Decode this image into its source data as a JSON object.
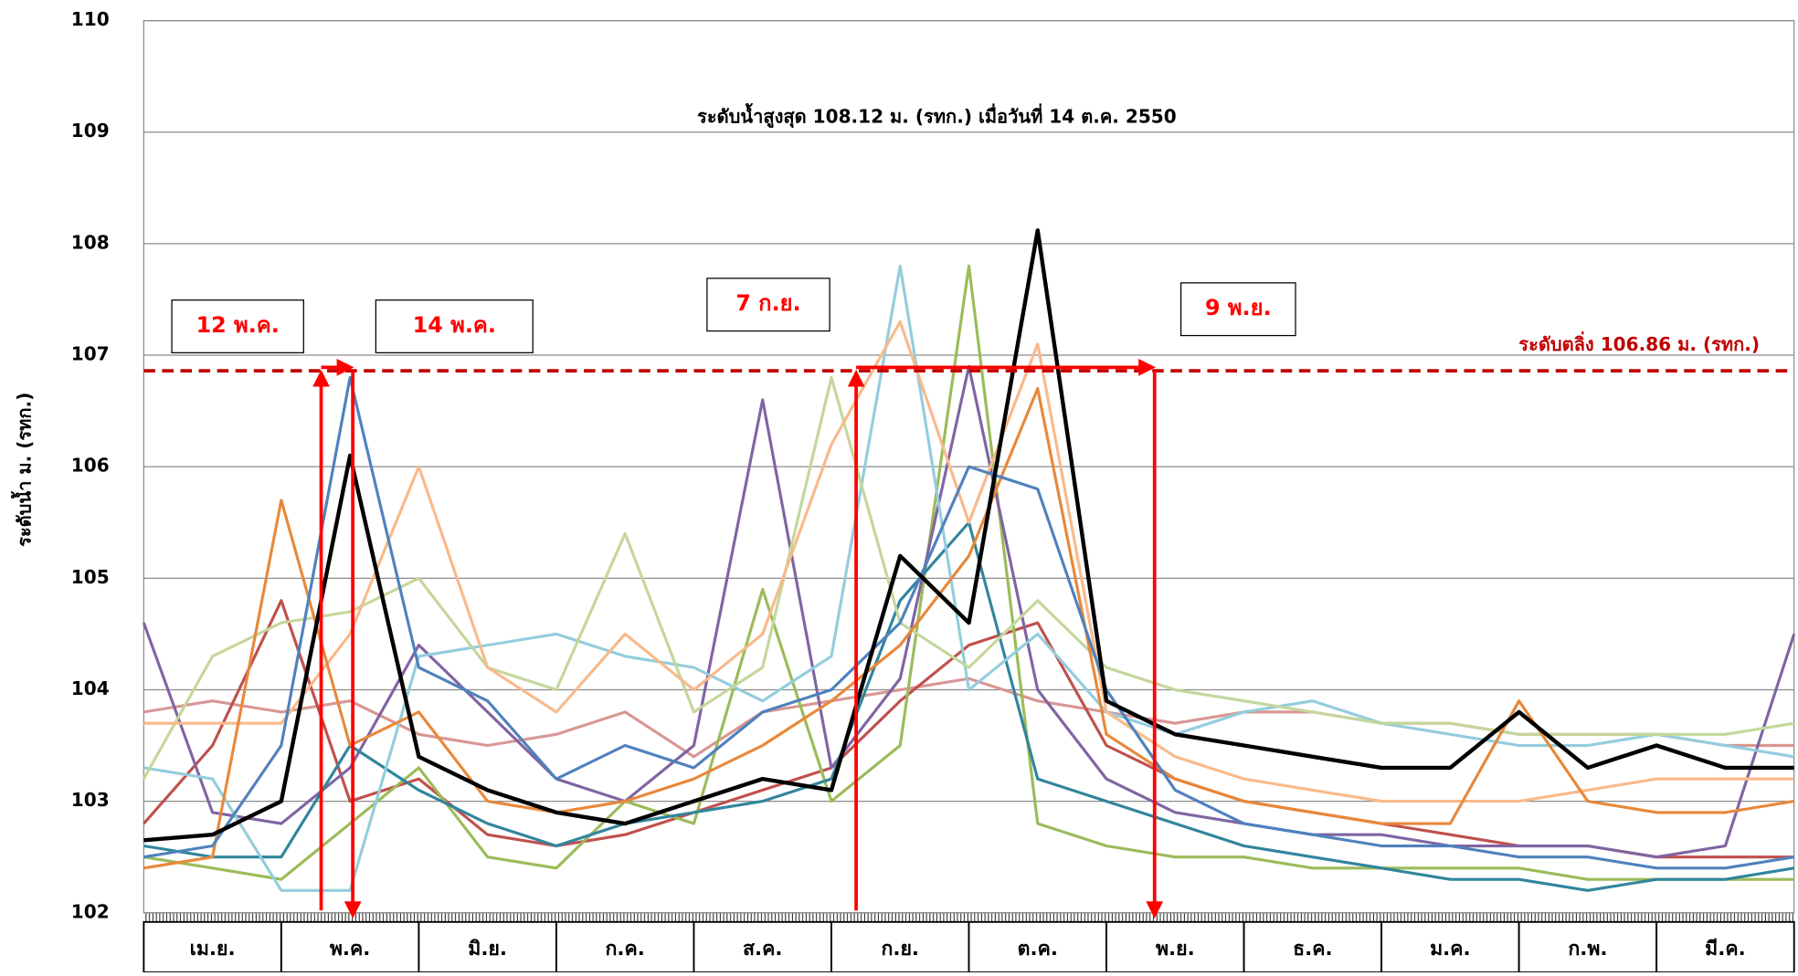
{
  "chart_data": {
    "type": "line",
    "ylabel": "ระดับน้ำ ม. (รทก.)",
    "annotation": "ระดับน้ำสูงสุด 108.12 ม. (รทก.) เมื่อวันที่ 14 ต.ค. 2550",
    "categories": [
      "เม.ย.",
      "พ.ค.",
      "มิ.ย.",
      "ก.ค.",
      "ส.ค.",
      "ก.ย.",
      "ต.ค.",
      "พ.ย.",
      "ธ.ค.",
      "ม.ค.",
      "ก.พ.",
      "มี.ค."
    ],
    "xlim": [
      0,
      12
    ],
    "ylim": [
      102,
      110
    ],
    "yticks": [
      102,
      103,
      104,
      105,
      106,
      107,
      108,
      109,
      110
    ],
    "grid": true,
    "threshold": {
      "value": 106.86,
      "label": "ระดับตลิ่ง 106.86 ม. (รทก.)",
      "color": "#c00000"
    },
    "date_labels": [
      {
        "label": "12 พ.ค.",
        "x": 1.29
      },
      {
        "label": "14 พ.ค.",
        "x": 1.52
      },
      {
        "label": "7 ก.ย.",
        "x": 5.18
      },
      {
        "label": "9 พ.ย.",
        "x": 7.35
      }
    ],
    "arrow_color": "#ff0000",
    "x": [
      0,
      0.5,
      1,
      1.5,
      2,
      2.5,
      3,
      3.5,
      4,
      4.5,
      5,
      5.5,
      6,
      6.5,
      7,
      7.5,
      8,
      8.5,
      9,
      9.5,
      10,
      10.5,
      11,
      11.5,
      12
    ],
    "series": [
      {
        "color": "#d99694",
        "values": [
          103.8,
          103.9,
          103.8,
          103.9,
          103.6,
          103.5,
          103.6,
          103.8,
          103.4,
          103.8,
          103.9,
          104,
          104.1,
          103.9,
          103.8,
          103.7,
          103.8,
          103.8,
          103.7,
          103.7,
          103.6,
          103.6,
          103.6,
          103.5,
          103.5
        ]
      },
      {
        "color": "#c0504d",
        "values": [
          102.8,
          103.5,
          104.8,
          103,
          103.2,
          102.7,
          102.6,
          102.7,
          102.9,
          103.1,
          103.3,
          103.9,
          104.4,
          104.6,
          103.5,
          103.2,
          103,
          102.9,
          102.8,
          102.7,
          102.6,
          102.6,
          102.5,
          102.5,
          102.5
        ]
      },
      {
        "color": "#9bbb59",
        "values": [
          102.5,
          102.4,
          102.3,
          102.8,
          103.3,
          102.5,
          102.4,
          103,
          102.8,
          104.9,
          103,
          103.5,
          107.8,
          102.8,
          102.6,
          102.5,
          102.5,
          102.4,
          102.4,
          102.4,
          102.4,
          102.3,
          102.3,
          102.3,
          102.3
        ]
      },
      {
        "color": "#8064a2",
        "values": [
          104.6,
          102.9,
          102.8,
          103.3,
          104.4,
          103.8,
          103.2,
          103,
          103.5,
          106.6,
          103.3,
          104.1,
          106.9,
          104,
          103.2,
          102.9,
          102.8,
          102.7,
          102.7,
          102.6,
          102.6,
          102.6,
          102.5,
          102.6,
          104.5
        ]
      },
      {
        "color": "#31859c",
        "values": [
          102.6,
          102.5,
          102.5,
          103.5,
          103.1,
          102.8,
          102.6,
          102.8,
          102.9,
          103,
          103.2,
          104.8,
          105.5,
          103.2,
          103,
          102.8,
          102.6,
          102.5,
          102.4,
          102.3,
          102.3,
          102.2,
          102.3,
          102.3,
          102.4
        ]
      },
      {
        "color": "#93cddd",
        "values": [
          103.3,
          103.2,
          102.2,
          102.2,
          104.3,
          104.4,
          104.5,
          104.3,
          104.2,
          103.9,
          104.3,
          107.8,
          104,
          104.5,
          103.8,
          103.6,
          103.8,
          103.9,
          103.7,
          103.6,
          103.5,
          103.5,
          103.6,
          103.5,
          103.4
        ]
      },
      {
        "color": "#c4d79b",
        "values": [
          103.2,
          104.3,
          104.6,
          104.7,
          105,
          104.2,
          104,
          105.4,
          103.8,
          104.2,
          106.8,
          104.6,
          104.2,
          104.8,
          104.2,
          104,
          103.9,
          103.8,
          103.7,
          103.7,
          103.6,
          103.6,
          103.6,
          103.6,
          103.7
        ]
      },
      {
        "color": "#f9b98a",
        "values": [
          103.7,
          103.7,
          103.7,
          104.5,
          106,
          104.2,
          103.8,
          104.5,
          104,
          104.5,
          106.2,
          107.3,
          105.5,
          107.1,
          103.8,
          103.4,
          103.2,
          103.1,
          103,
          103,
          103,
          103.1,
          103.2,
          103.2,
          103.2
        ]
      },
      {
        "color": "#e8883a",
        "values": [
          102.4,
          102.5,
          105.7,
          103.5,
          103.8,
          103,
          102.9,
          103,
          103.2,
          103.5,
          103.9,
          104.4,
          105.2,
          106.7,
          103.6,
          103.2,
          103,
          102.9,
          102.8,
          102.8,
          103.9,
          103,
          102.9,
          102.9,
          103
        ]
      },
      {
        "color": "#4f81bd",
        "values": [
          102.5,
          102.6,
          103.5,
          106.8,
          104.2,
          103.9,
          103.2,
          103.5,
          103.3,
          103.8,
          104,
          104.6,
          106,
          105.8,
          104,
          103.1,
          102.8,
          102.7,
          102.6,
          102.6,
          102.5,
          102.5,
          102.4,
          102.4,
          102.5
        ]
      },
      {
        "color": "#000000",
        "values": [
          102.65,
          102.7,
          103,
          106.1,
          103.4,
          103.1,
          102.9,
          102.8,
          103,
          103.2,
          103.1,
          105.2,
          104.6,
          108.12,
          103.9,
          103.6,
          103.5,
          103.4,
          103.3,
          103.3,
          103.8,
          103.3,
          103.5,
          103.3,
          103.3
        ]
      }
    ]
  }
}
